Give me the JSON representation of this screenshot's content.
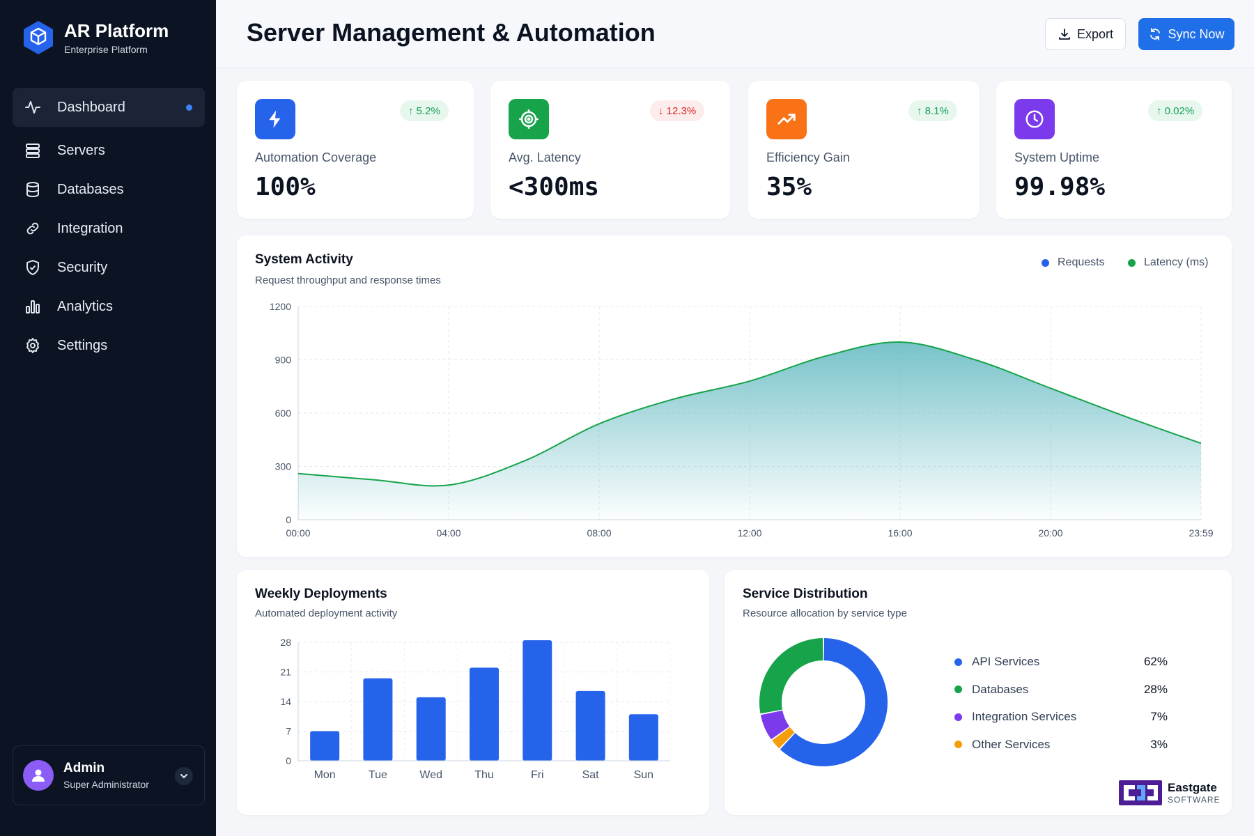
{
  "sidebar": {
    "brand_title": "AR Platform",
    "brand_subtitle": "Enterprise Platform",
    "items": [
      {
        "label": "Dashboard",
        "icon": "activity-icon"
      },
      {
        "label": "Servers",
        "icon": "server-icon"
      },
      {
        "label": "Databases",
        "icon": "database-icon"
      },
      {
        "label": "Integration",
        "icon": "link-icon"
      },
      {
        "label": "Security",
        "icon": "shield-icon"
      },
      {
        "label": "Analytics",
        "icon": "bar-chart-icon"
      },
      {
        "label": "Settings",
        "icon": "gear-icon"
      }
    ],
    "user": {
      "name": "Admin",
      "role": "Super Administrator"
    }
  },
  "header": {
    "title": "Server Management & Automation",
    "export_label": "Export",
    "sync_label": "Sync Now"
  },
  "stats": [
    {
      "label": "Automation Coverage",
      "value": "100%",
      "change": "↑ 5.2%",
      "trend": "up",
      "color": "#2563eb",
      "icon": "bolt-icon"
    },
    {
      "label": "Avg. Latency",
      "value": "<300ms",
      "change": "↓ 12.3%",
      "trend": "down",
      "color": "#16a34a",
      "icon": "target-icon"
    },
    {
      "label": "Efficiency Gain",
      "value": "35%",
      "change": "↑ 8.1%",
      "trend": "up",
      "color": "#f97316",
      "icon": "trending-up-icon"
    },
    {
      "label": "System Uptime",
      "value": "99.98%",
      "change": "↑ 0.02%",
      "trend": "up",
      "color": "#7c3aed",
      "icon": "clock-icon"
    }
  ],
  "activity": {
    "title": "System Activity",
    "subtitle": "Request throughput and response times",
    "legend": [
      "Requests",
      "Latency (ms)"
    ]
  },
  "deployments": {
    "title": "Weekly Deployments",
    "subtitle": "Automated deployment activity"
  },
  "distribution": {
    "title": "Service Distribution",
    "subtitle": "Resource allocation by service type"
  },
  "footer_logo": {
    "name": "Eastgate",
    "sub": "SOFTWARE"
  },
  "chart_data": [
    {
      "type": "area",
      "title": "System Activity",
      "x": [
        "00:00",
        "02:00",
        "04:00",
        "06:00",
        "08:00",
        "10:00",
        "12:00",
        "14:00",
        "16:00",
        "18:00",
        "20:00",
        "22:00",
        "23:59"
      ],
      "series": [
        {
          "name": "Latency (ms)",
          "values": [
            260,
            225,
            195,
            330,
            540,
            680,
            780,
            920,
            1000,
            900,
            740,
            580,
            430
          ]
        }
      ],
      "ylim": [
        0,
        1200
      ],
      "yticks": [
        0,
        300,
        600,
        900,
        1200
      ],
      "xticks": [
        "00:00",
        "04:00",
        "08:00",
        "12:00",
        "16:00",
        "20:00",
        "23:59"
      ],
      "legend": [
        "Requests",
        "Latency (ms)"
      ],
      "legend_position": "top-right",
      "colors": {
        "Requests": "#2563eb",
        "Latency (ms)": "#16a34a",
        "fill": "#5fb8c0"
      },
      "grid": true
    },
    {
      "type": "bar",
      "title": "Weekly Deployments",
      "categories": [
        "Mon",
        "Tue",
        "Wed",
        "Thu",
        "Fri",
        "Sat",
        "Sun"
      ],
      "values": [
        7,
        19.5,
        15,
        22,
        28.5,
        16.5,
        11
      ],
      "ylim": [
        0,
        28
      ],
      "yticks": [
        0,
        7,
        14,
        21,
        28
      ],
      "color": "#2563eb",
      "grid": true
    },
    {
      "type": "pie",
      "title": "Service Distribution",
      "labels": [
        "API Services",
        "Databases",
        "Integration Services",
        "Other Services"
      ],
      "pct_labels": [
        "62%",
        "28%",
        "7%",
        "3%"
      ],
      "values": [
        62,
        28,
        7,
        3
      ],
      "colors": [
        "#2563eb",
        "#16a34a",
        "#7c3aed",
        "#f59e0b"
      ],
      "segment_order": [
        "API Services",
        "Other Services",
        "Integration Services",
        "Databases"
      ]
    }
  ]
}
